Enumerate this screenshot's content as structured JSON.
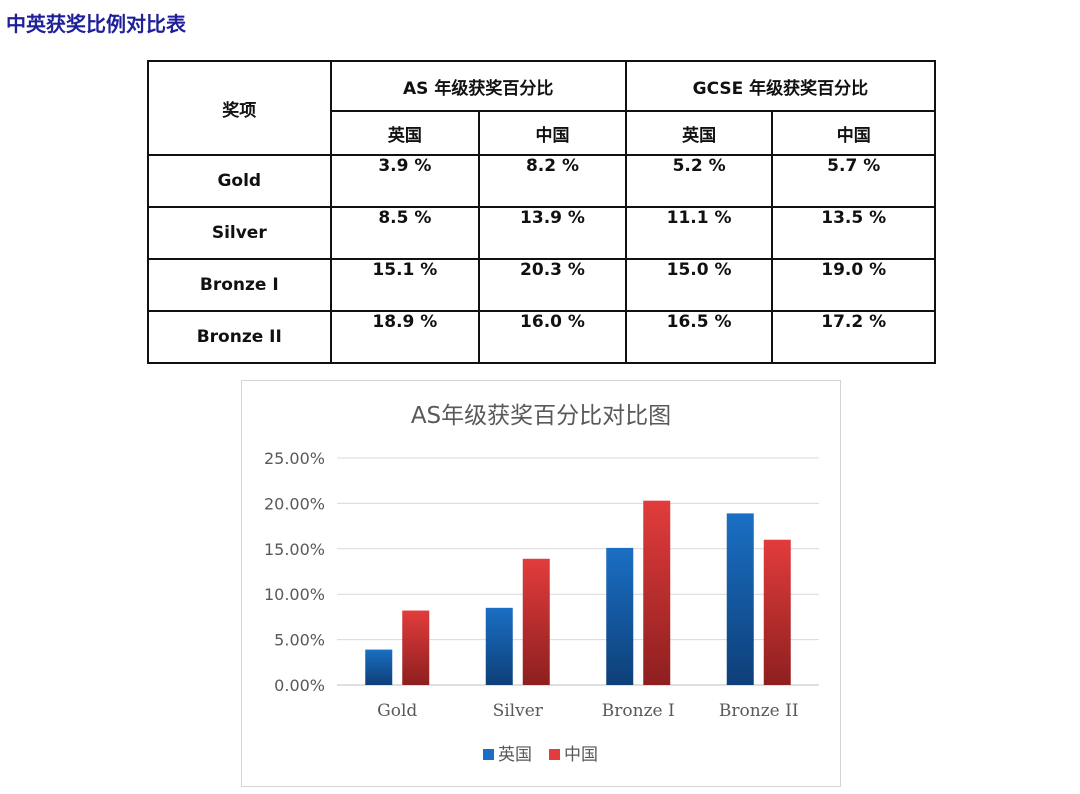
{
  "page_title": "中英获奖比例对比表",
  "table": {
    "award_header": "奖项",
    "group_headers": [
      "AS 年级获奖百分比",
      "GCSE 年级获奖百分比"
    ],
    "country_headers": [
      "英国",
      "中国",
      "英国",
      "中国"
    ],
    "rows": [
      {
        "label": "Gold",
        "values": [
          "3.9 %",
          "8.2 %",
          "5.2 %",
          "5.7 %"
        ]
      },
      {
        "label": "Silver",
        "values": [
          "8.5 %",
          "13.9 %",
          "11.1 %",
          "13.5 %"
        ]
      },
      {
        "label": "Bronze I",
        "values": [
          "15.1 %",
          "20.3 %",
          "15.0 %",
          "19.0 %"
        ]
      },
      {
        "label": "Bronze II",
        "values": [
          "18.9 %",
          "16.0 %",
          "16.5 %",
          "17.2 %"
        ]
      }
    ]
  },
  "chart_data": {
    "type": "bar",
    "title": "AS年级获奖百分比对比图",
    "categories": [
      "Gold",
      "Silver",
      "Bronze I",
      "Bronze II"
    ],
    "series": [
      {
        "name": "英国",
        "values": [
          3.9,
          8.5,
          15.1,
          18.9
        ],
        "color": "#1a6fc4"
      },
      {
        "name": "中国",
        "values": [
          8.2,
          13.9,
          20.3,
          16.0
        ],
        "color": "#e23c3c"
      }
    ],
    "ylim": [
      0,
      25
    ],
    "yticks": [
      "0.00%",
      "5.00%",
      "10.00%",
      "15.00%",
      "20.00%",
      "25.00%"
    ],
    "grid": true,
    "legend_position": "bottom"
  }
}
